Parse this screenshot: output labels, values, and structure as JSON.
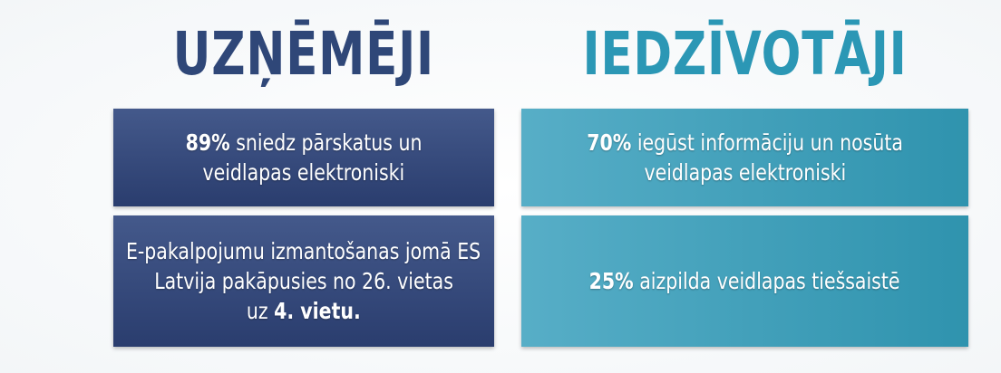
{
  "columns": [
    {
      "title": "UZŅĒMĒJI",
      "theme": "dark",
      "boxes": [
        {
          "lines": [
            [
              {
                "text": "89%",
                "bold": true
              },
              {
                "text": " sniedz pārskatus un"
              }
            ],
            [
              {
                "text": "veidlapas elektroniski"
              }
            ]
          ]
        },
        {
          "lines": [
            [
              {
                "text": "E-pakalpojumu izmantošanas jomā ES"
              }
            ],
            [
              {
                "text": "Latvija pakāpusies no 26. vietas"
              }
            ],
            [
              {
                "text": "uz "
              },
              {
                "text": "4. vietu.",
                "bold": true
              }
            ]
          ]
        }
      ]
    },
    {
      "title": "IEDZĪVOTĀJI",
      "theme": "light",
      "boxes": [
        {
          "lines": [
            [
              {
                "text": "70%",
                "bold": true
              },
              {
                "text": " iegūst informāciju un nosūta"
              }
            ],
            [
              {
                "text": "veidlapas elektroniski"
              }
            ]
          ]
        },
        {
          "lines": [
            [
              {
                "text": "25%",
                "bold": true
              },
              {
                "text": " aizpilda veidlapas tiešsaistē"
              }
            ]
          ]
        }
      ]
    }
  ]
}
